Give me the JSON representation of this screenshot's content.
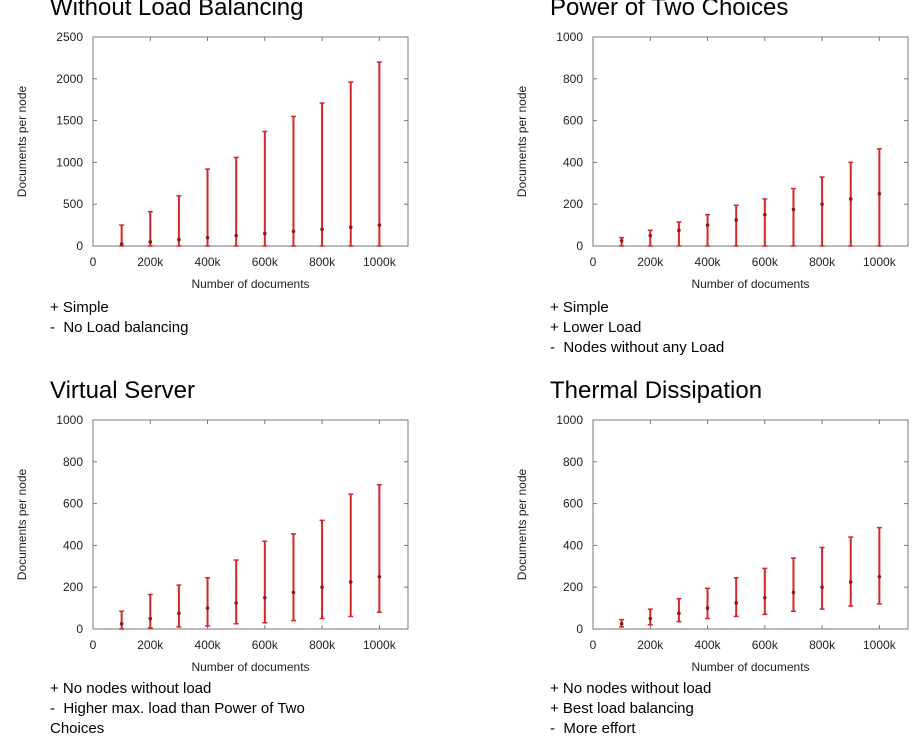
{
  "chart_data": [
    {
      "type": "errorbar",
      "title": "Without Load Balancing",
      "xlabel": "Number of documents",
      "ylabel": "Documents per node",
      "xlim": [
        0,
        1100000
      ],
      "ylim": [
        0,
        2500
      ],
      "xticks": [
        0,
        200000,
        400000,
        600000,
        800000,
        1000000
      ],
      "xtick_labels": [
        "0",
        "200k",
        "400k",
        "600k",
        "800k",
        "1000k"
      ],
      "yticks": [
        0,
        500,
        1000,
        1500,
        2000,
        2500
      ],
      "ytick_labels": [
        "0",
        "500",
        "1000",
        "1500",
        "2000",
        "2500"
      ],
      "color": "#d62728",
      "points": [
        {
          "x": 100000,
          "mean": 25,
          "min": 0,
          "max": 250
        },
        {
          "x": 200000,
          "mean": 50,
          "min": 0,
          "max": 410
        },
        {
          "x": 300000,
          "mean": 75,
          "min": 0,
          "max": 600
        },
        {
          "x": 400000,
          "mean": 100,
          "min": 0,
          "max": 920
        },
        {
          "x": 500000,
          "mean": 125,
          "min": 0,
          "max": 1060
        },
        {
          "x": 600000,
          "mean": 150,
          "min": 0,
          "max": 1370
        },
        {
          "x": 700000,
          "mean": 175,
          "min": 0,
          "max": 1550
        },
        {
          "x": 800000,
          "mean": 200,
          "min": 0,
          "max": 1710
        },
        {
          "x": 900000,
          "mean": 225,
          "min": 0,
          "max": 1960
        },
        {
          "x": 1000000,
          "mean": 250,
          "min": 0,
          "max": 2200
        }
      ],
      "notes": [
        "+ Simple",
        "-  No Load balancing"
      ]
    },
    {
      "type": "errorbar",
      "title": "Power of Two Choices",
      "xlabel": "Number of documents",
      "ylabel": "Documents per node",
      "xlim": [
        0,
        1100000
      ],
      "ylim": [
        0,
        1000
      ],
      "xticks": [
        0,
        200000,
        400000,
        600000,
        800000,
        1000000
      ],
      "xtick_labels": [
        "0",
        "200k",
        "400k",
        "600k",
        "800k",
        "1000k"
      ],
      "yticks": [
        0,
        200,
        400,
        600,
        800,
        1000
      ],
      "ytick_labels": [
        "0",
        "200",
        "400",
        "600",
        "800",
        "1000"
      ],
      "color": "#d62728",
      "points": [
        {
          "x": 100000,
          "mean": 25,
          "min": 0,
          "max": 40
        },
        {
          "x": 200000,
          "mean": 50,
          "min": 0,
          "max": 75
        },
        {
          "x": 300000,
          "mean": 75,
          "min": 0,
          "max": 115
        },
        {
          "x": 400000,
          "mean": 100,
          "min": 0,
          "max": 150
        },
        {
          "x": 500000,
          "mean": 125,
          "min": 0,
          "max": 195
        },
        {
          "x": 600000,
          "mean": 150,
          "min": 0,
          "max": 225
        },
        {
          "x": 700000,
          "mean": 175,
          "min": 0,
          "max": 275
        },
        {
          "x": 800000,
          "mean": 200,
          "min": 0,
          "max": 330
        },
        {
          "x": 900000,
          "mean": 225,
          "min": 0,
          "max": 400
        },
        {
          "x": 1000000,
          "mean": 250,
          "min": 0,
          "max": 465
        }
      ],
      "notes": [
        "+ Simple",
        "+ Lower Load",
        "-  Nodes without any Load"
      ]
    },
    {
      "type": "errorbar",
      "title": "Virtual Server",
      "xlabel": "Number of documents",
      "ylabel": "Documents per node",
      "xlim": [
        0,
        1100000
      ],
      "ylim": [
        0,
        1000
      ],
      "xticks": [
        0,
        200000,
        400000,
        600000,
        800000,
        1000000
      ],
      "xtick_labels": [
        "0",
        "200k",
        "400k",
        "600k",
        "800k",
        "1000k"
      ],
      "yticks": [
        0,
        200,
        400,
        600,
        800,
        1000
      ],
      "ytick_labels": [
        "0",
        "200",
        "400",
        "600",
        "800",
        "1000"
      ],
      "color": "#d62728",
      "points": [
        {
          "x": 100000,
          "mean": 25,
          "min": 0,
          "max": 85
        },
        {
          "x": 200000,
          "mean": 50,
          "min": 5,
          "max": 165
        },
        {
          "x": 300000,
          "mean": 75,
          "min": 10,
          "max": 210
        },
        {
          "x": 400000,
          "mean": 100,
          "min": 15,
          "max": 245
        },
        {
          "x": 500000,
          "mean": 125,
          "min": 25,
          "max": 330
        },
        {
          "x": 600000,
          "mean": 150,
          "min": 30,
          "max": 420
        },
        {
          "x": 700000,
          "mean": 175,
          "min": 40,
          "max": 455
        },
        {
          "x": 800000,
          "mean": 200,
          "min": 50,
          "max": 520
        },
        {
          "x": 900000,
          "mean": 225,
          "min": 60,
          "max": 645
        },
        {
          "x": 1000000,
          "mean": 250,
          "min": 80,
          "max": 690
        }
      ],
      "notes": [
        "+ No nodes without load",
        "-  Higher max. load than Power of Two",
        "Choices"
      ]
    },
    {
      "type": "errorbar",
      "title": "Thermal Dissipation",
      "xlabel": "Number of documents",
      "ylabel": "Documents per node",
      "xlim": [
        0,
        1100000
      ],
      "ylim": [
        0,
        1000
      ],
      "xticks": [
        0,
        200000,
        400000,
        600000,
        800000,
        1000000
      ],
      "xtick_labels": [
        "0",
        "200k",
        "400k",
        "600k",
        "800k",
        "1000k"
      ],
      "yticks": [
        0,
        200,
        400,
        600,
        800,
        1000
      ],
      "ytick_labels": [
        "0",
        "200",
        "400",
        "600",
        "800",
        "1000"
      ],
      "color": "#d62728",
      "points": [
        {
          "x": 100000,
          "mean": 25,
          "min": 10,
          "max": 45
        },
        {
          "x": 200000,
          "mean": 50,
          "min": 20,
          "max": 95
        },
        {
          "x": 300000,
          "mean": 75,
          "min": 35,
          "max": 145
        },
        {
          "x": 400000,
          "mean": 100,
          "min": 50,
          "max": 195
        },
        {
          "x": 500000,
          "mean": 125,
          "min": 60,
          "max": 245
        },
        {
          "x": 600000,
          "mean": 150,
          "min": 70,
          "max": 290
        },
        {
          "x": 700000,
          "mean": 175,
          "min": 85,
          "max": 340
        },
        {
          "x": 800000,
          "mean": 200,
          "min": 95,
          "max": 390
        },
        {
          "x": 900000,
          "mean": 225,
          "min": 110,
          "max": 440
        },
        {
          "x": 1000000,
          "mean": 250,
          "min": 120,
          "max": 485
        }
      ],
      "notes": [
        "+ No nodes without load",
        "+ Best load balancing",
        "-  More effort"
      ]
    }
  ]
}
